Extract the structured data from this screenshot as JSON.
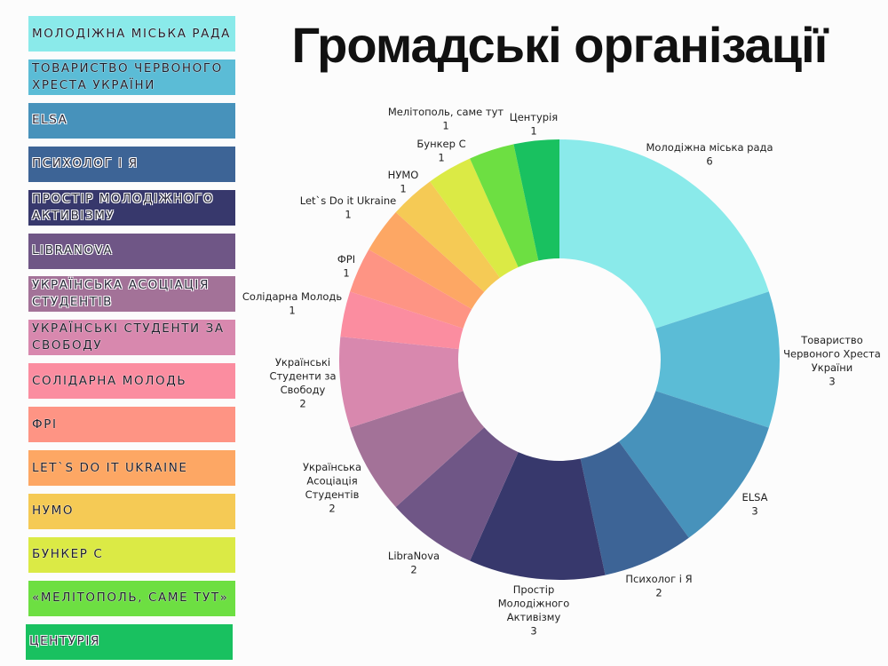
{
  "title": "Громадські організації",
  "legend": [
    "МОЛОДІЖНА МІСЬКА РАДА",
    "ТОВАРИСТВО ЧЕРВОНОГО ХРЕСТА УКРАЇНИ",
    "ELSA",
    "ПСИХОЛОГ І Я",
    "ПРОСТІР МОЛОДІЖНОГО АКТИВІЗМУ",
    "LIBRANOVA",
    "УКРАЇНСЬКА АСОЦІАЦІЯ СТУДЕНТІВ",
    "УКРАЇНСЬКІ СТУДЕНТИ ЗА СВОБОДУ",
    "СОЛІДАРНА МОЛОДЬ",
    "ФРІ",
    "LET`S DO IT UKRAINE",
    "НУМО",
    "БУНКЕР С",
    "«МЕЛІТОПОЛЬ, САМЕ ТУТ»",
    "ЦЕНТУРІЯ"
  ],
  "chart_data": {
    "type": "pie",
    "donut": true,
    "title": "Громадські організації",
    "categories": [
      [
        "Молодіжна міська рада"
      ],
      [
        "Товариство",
        "Червоного Хреста",
        "України"
      ],
      [
        "ELSA"
      ],
      [
        "Психолог і Я"
      ],
      [
        "Простір",
        "Молодіжного",
        "Активізму"
      ],
      [
        "LibraNova"
      ],
      [
        "Українська",
        "Асоціація",
        "Студентів"
      ],
      [
        "Українські",
        "Студенти за",
        "Свободу"
      ],
      [
        "Солідарна Молодь"
      ],
      [
        "ФРІ"
      ],
      [
        "Let`s Do it Ukraine"
      ],
      [
        "НУМО"
      ],
      [
        "Бункер С"
      ],
      [
        "Мелітополь, саме тут"
      ],
      [
        "Центурія"
      ]
    ],
    "values": [
      6,
      3,
      3,
      2,
      3,
      2,
      2,
      2,
      1,
      1,
      1,
      1,
      1,
      1,
      1
    ],
    "colors": [
      "#8aeaea",
      "#5bbcd6",
      "#4792bb",
      "#3d6496",
      "#37386c",
      "#6f5686",
      "#a37298",
      "#d888ae",
      "#fb8da0",
      "#fe9484",
      "#fda764",
      "#f5ca55",
      "#dbea45",
      "#6ddf42",
      "#19c160"
    ],
    "legend": "left"
  }
}
